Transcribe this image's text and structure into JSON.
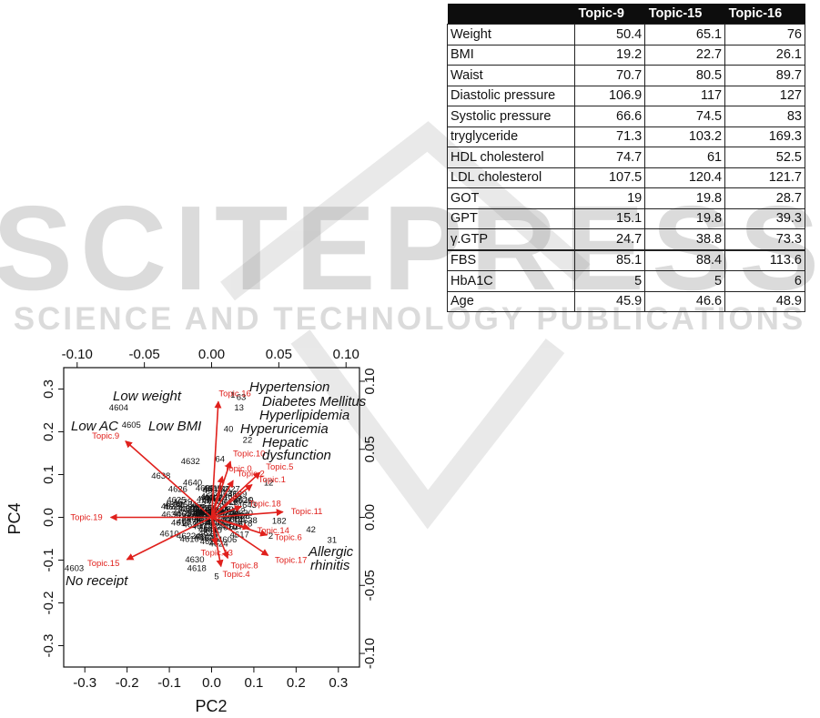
{
  "table": {
    "headers": [
      "",
      "Topic-9",
      "Topic-15",
      "Topic-16"
    ],
    "rows": [
      {
        "label": "Weight",
        "values": [
          "50.4",
          "65.1",
          "76"
        ]
      },
      {
        "label": "BMI",
        "values": [
          "19.2",
          "22.7",
          "26.1"
        ]
      },
      {
        "label": "Waist",
        "values": [
          "70.7",
          "80.5",
          "89.7"
        ]
      },
      {
        "label": "Diastolic pressure",
        "values": [
          "106.9",
          "117",
          "127"
        ]
      },
      {
        "label": "Systolic pressure",
        "values": [
          "66.6",
          "74.5",
          "83"
        ]
      },
      {
        "label": "tryglyceride",
        "values": [
          "71.3",
          "103.2",
          "169.3"
        ]
      },
      {
        "label": "HDL cholesterol",
        "values": [
          "74.7",
          "61",
          "52.5"
        ]
      },
      {
        "label": "LDL cholesterol",
        "values": [
          "107.5",
          "120.4",
          "121.7"
        ]
      },
      {
        "label": "GOT",
        "values": [
          "19",
          "19.8",
          "28.7"
        ]
      },
      {
        "label": "GPT",
        "values": [
          "15.1",
          "19.8",
          "39.3"
        ]
      },
      {
        "label": "γ.GTP",
        "values": [
          "24.7",
          "38.8",
          "73.3"
        ]
      },
      {
        "label": "FBS",
        "values": [
          "85.1",
          "88.4",
          "113.6"
        ]
      },
      {
        "label": "HbA1C",
        "values": [
          "5",
          "5",
          "6"
        ]
      },
      {
        "label": "Age",
        "values": [
          "45.9",
          "46.6",
          "48.9"
        ]
      }
    ]
  },
  "watermark": {
    "main": "SCITEPRESS",
    "sub": "SCIENCE AND TECHNOLOGY PUBLICATIONS"
  },
  "chart_data": {
    "type": "scatter",
    "subtype": "biplot",
    "xlabel": "PC2",
    "ylabel": "PC4",
    "xlim": [
      -0.35,
      0.35
    ],
    "ylim": [
      -0.35,
      0.35
    ],
    "x_ticks": [
      "-0.3",
      "-0.2",
      "-0.1",
      "0.0",
      "0.1",
      "0.2",
      "0.3"
    ],
    "y_ticks": [
      "-0.3",
      "-0.2",
      "-0.1",
      "0.0",
      "0.1",
      "0.2",
      "0.3"
    ],
    "top_ticks": [
      "-0.10",
      "-0.05",
      "0.00",
      "0.05",
      "0.10"
    ],
    "right_ticks": [
      "-0.10",
      "-0.05",
      "0.00",
      "0.05",
      "0.10"
    ],
    "secondary_lim": [
      -0.11,
      0.11
    ],
    "arrow_color": "#e0201c",
    "loadings": [
      {
        "name": "Topic.16",
        "x": 0.005,
        "y": 0.085
      },
      {
        "name": "Topic.9",
        "x": -0.064,
        "y": 0.056
      },
      {
        "name": "Topic.19",
        "x": -0.075,
        "y": 0.0
      },
      {
        "name": "Topic.15",
        "x": -0.063,
        "y": -0.031
      },
      {
        "name": "Topic.10",
        "x": 0.014,
        "y": 0.041
      },
      {
        "name": "Topic.5",
        "x": 0.036,
        "y": 0.033
      },
      {
        "name": "Topic.1",
        "x": 0.03,
        "y": 0.024
      },
      {
        "name": "Topic.18",
        "x": 0.022,
        "y": 0.008
      },
      {
        "name": "Topic.11",
        "x": 0.053,
        "y": 0.004
      },
      {
        "name": "Topic.6",
        "x": 0.041,
        "y": -0.013
      },
      {
        "name": "Topic.17",
        "x": 0.042,
        "y": -0.028
      },
      {
        "name": "Topic.13",
        "x": 0.003,
        "y": -0.02
      },
      {
        "name": "Topic.8",
        "x": 0.012,
        "y": -0.03
      },
      {
        "name": "Topic.4",
        "x": 0.007,
        "y": -0.036
      },
      {
        "name": "Topic.0",
        "x": 0.008,
        "y": 0.03
      },
      {
        "name": "Topic.2",
        "x": 0.016,
        "y": 0.027
      },
      {
        "name": "Topic.14",
        "x": 0.028,
        "y": -0.008
      }
    ],
    "observations": [
      {
        "name": "4604",
        "x": -0.22,
        "y": 0.25
      },
      {
        "name": "4605",
        "x": -0.19,
        "y": 0.21
      },
      {
        "name": "4603",
        "x": -0.325,
        "y": -0.125
      },
      {
        "name": "4618",
        "x": -0.035,
        "y": -0.125
      },
      {
        "name": "4638",
        "x": -0.12,
        "y": 0.09
      },
      {
        "name": "4632",
        "x": -0.05,
        "y": 0.125
      },
      {
        "name": "4626",
        "x": -0.08,
        "y": 0.06
      },
      {
        "name": "4610",
        "x": -0.1,
        "y": -0.045
      },
      {
        "name": "4630",
        "x": -0.04,
        "y": -0.105
      },
      {
        "name": "4622",
        "x": -0.06,
        "y": -0.05
      },
      {
        "name": "4640",
        "x": -0.045,
        "y": 0.075
      },
      {
        "name": "4615",
        "x": -0.02,
        "y": 0.015
      },
      {
        "name": "1",
        "x": 0.05,
        "y": 0.28
      },
      {
        "name": "63",
        "x": 0.07,
        "y": 0.275
      },
      {
        "name": "13",
        "x": 0.065,
        "y": 0.25
      },
      {
        "name": "40",
        "x": 0.04,
        "y": 0.2
      },
      {
        "name": "22",
        "x": 0.085,
        "y": 0.175
      },
      {
        "name": "64",
        "x": 0.02,
        "y": 0.13
      },
      {
        "name": "12",
        "x": 0.135,
        "y": 0.075
      },
      {
        "name": "5",
        "x": 0.012,
        "y": -0.145
      },
      {
        "name": "31",
        "x": 0.285,
        "y": -0.06
      },
      {
        "name": "42",
        "x": 0.235,
        "y": -0.035
      },
      {
        "name": "182",
        "x": 0.16,
        "y": -0.015
      },
      {
        "name": "52",
        "x": 0.03,
        "y": 0.06
      },
      {
        "name": "2",
        "x": 0.14,
        "y": -0.05
      }
    ],
    "annotations": [
      "Hypertension",
      "Diabetes Mellitus",
      "Hyperlipidemia",
      "Hyperuricemia",
      "Hepatic",
      "dysfunction",
      "Low weight",
      "Low AC",
      "Low BMI",
      "Allergic",
      "rhinitis",
      "No receipt"
    ]
  }
}
